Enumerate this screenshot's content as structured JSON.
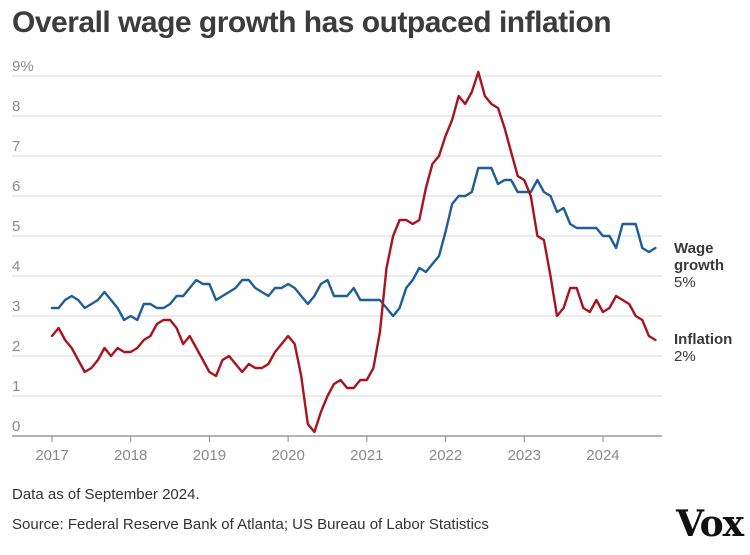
{
  "brand": {
    "logo_text": "Vox"
  },
  "footnotes": {
    "data_as_of": "Data as of September 2024.",
    "source": "Source: Federal Reserve Bank of Atlanta; US Bureau of Labor Statistics"
  },
  "colors": {
    "wage": "#1f5e96",
    "inflation": "#a8141f",
    "grid": "#d9d9d9",
    "axis": "#888888",
    "tick_text": "#8a8a8a",
    "label_text": "#3a3a3a"
  },
  "chart_data": {
    "type": "line",
    "title": "Overall wage growth has outpaced inflation",
    "xlabel": "",
    "ylabel": "",
    "ylim": [
      0,
      9
    ],
    "xlim": [
      2017.0,
      2024.75
    ],
    "grid": true,
    "yticks": [
      0,
      1,
      2,
      3,
      4,
      5,
      6,
      7,
      8,
      9
    ],
    "ytick_labels": [
      "0",
      "1",
      "2",
      "3",
      "4",
      "5",
      "6",
      "7",
      "8",
      "9%"
    ],
    "xticks": [
      2017,
      2018,
      2019,
      2020,
      2021,
      2022,
      2023,
      2024
    ],
    "xtick_labels": [
      "2017",
      "2018",
      "2019",
      "2020",
      "2021",
      "2022",
      "2023",
      "2024"
    ],
    "series": [
      {
        "name": "Wage growth",
        "end_label": "Wage growth",
        "end_value_label": "5%",
        "color": "#1f5e96",
        "x_start": 2017.0,
        "x_step": 0.08333,
        "values": [
          3.2,
          3.2,
          3.4,
          3.5,
          3.4,
          3.2,
          3.3,
          3.4,
          3.6,
          3.4,
          3.2,
          2.9,
          3.0,
          2.9,
          3.3,
          3.3,
          3.2,
          3.2,
          3.3,
          3.5,
          3.5,
          3.7,
          3.9,
          3.8,
          3.8,
          3.4,
          3.5,
          3.6,
          3.7,
          3.9,
          3.9,
          3.7,
          3.6,
          3.5,
          3.7,
          3.7,
          3.8,
          3.7,
          3.5,
          3.3,
          3.5,
          3.8,
          3.9,
          3.5,
          3.5,
          3.5,
          3.7,
          3.4,
          3.4,
          3.4,
          3.4,
          3.2,
          3.0,
          3.2,
          3.7,
          3.9,
          4.2,
          4.1,
          4.3,
          4.5,
          5.1,
          5.8,
          6.0,
          6.0,
          6.1,
          6.7,
          6.7,
          6.7,
          6.3,
          6.4,
          6.4,
          6.1,
          6.1,
          6.1,
          6.4,
          6.1,
          6.0,
          5.6,
          5.7,
          5.3,
          5.2,
          5.2,
          5.2,
          5.2,
          5.0,
          5.0,
          4.7,
          5.3,
          5.3,
          5.3,
          4.7,
          4.6,
          4.7
        ]
      },
      {
        "name": "Inflation",
        "end_label": "Inflation",
        "end_value_label": "2%",
        "color": "#a8141f",
        "x_start": 2017.0,
        "x_step": 0.08333,
        "values": [
          2.5,
          2.7,
          2.4,
          2.2,
          1.9,
          1.6,
          1.7,
          1.9,
          2.2,
          2.0,
          2.2,
          2.1,
          2.1,
          2.2,
          2.4,
          2.5,
          2.8,
          2.9,
          2.9,
          2.7,
          2.3,
          2.5,
          2.2,
          1.9,
          1.6,
          1.5,
          1.9,
          2.0,
          1.8,
          1.6,
          1.8,
          1.7,
          1.7,
          1.8,
          2.1,
          2.3,
          2.5,
          2.3,
          1.5,
          0.3,
          0.1,
          0.6,
          1.0,
          1.3,
          1.4,
          1.2,
          1.2,
          1.4,
          1.4,
          1.7,
          2.6,
          4.2,
          5.0,
          5.4,
          5.4,
          5.3,
          5.4,
          6.2,
          6.8,
          7.0,
          7.5,
          7.9,
          8.5,
          8.3,
          8.6,
          9.1,
          8.5,
          8.3,
          8.2,
          7.7,
          7.1,
          6.5,
          6.4,
          6.0,
          5.0,
          4.9,
          4.0,
          3.0,
          3.2,
          3.7,
          3.7,
          3.2,
          3.1,
          3.4,
          3.1,
          3.2,
          3.5,
          3.4,
          3.3,
          3.0,
          2.9,
          2.5,
          2.4
        ]
      }
    ]
  }
}
